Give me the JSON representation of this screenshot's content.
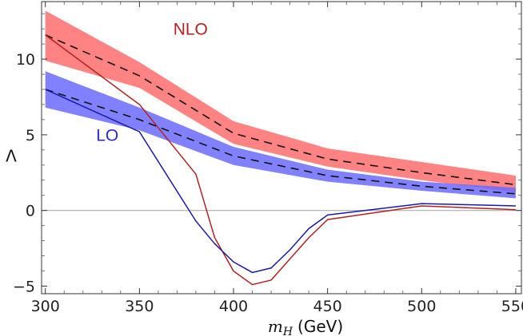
{
  "chart_data": {
    "type": "line",
    "title": "",
    "xlabel": "(GeV)",
    "xlabel_symbol": "m",
    "xlabel_subscript": "H",
    "ylabel": "Λ",
    "xlim": [
      298,
      553
    ],
    "ylim": [
      -5.5,
      13.8
    ],
    "xticks": [
      300,
      350,
      400,
      450,
      500,
      550
    ],
    "yticks": [
      -5,
      0,
      5,
      10
    ],
    "grid": false,
    "zero_line": true,
    "x": [
      300,
      350,
      400,
      450,
      500,
      550
    ],
    "bands": [
      {
        "name": "NLO band",
        "color": "#ff6d6d",
        "x": [
          300,
          350,
          400,
          450,
          500,
          550
        ],
        "lower": [
          9.9,
          8.1,
          4.4,
          2.9,
          2.0,
          1.2
        ],
        "upper": [
          13.2,
          9.8,
          5.9,
          4.1,
          3.2,
          2.3
        ],
        "central": [
          11.6,
          8.9,
          5.1,
          3.4,
          2.5,
          1.7
        ]
      },
      {
        "name": "LO band",
        "color": "#6b6bff",
        "x": [
          300,
          350,
          400,
          450,
          500,
          550
        ],
        "lower": [
          6.8,
          5.3,
          3.0,
          1.9,
          1.3,
          0.8
        ],
        "upper": [
          9.2,
          6.8,
          4.2,
          2.7,
          1.9,
          1.5
        ],
        "central": [
          8.0,
          6.0,
          3.6,
          2.3,
          1.6,
          1.1
        ]
      }
    ],
    "series": [
      {
        "name": "NLO",
        "color": "#b22222",
        "x": [
          300,
          350,
          380,
          390,
          400,
          410,
          420,
          430,
          440,
          450,
          500,
          550
        ],
        "values": [
          11.6,
          7.0,
          2.4,
          -1.8,
          -4.0,
          -4.9,
          -4.6,
          -3.2,
          -1.8,
          -0.6,
          0.3,
          0.05
        ]
      },
      {
        "name": "LO",
        "color": "#1a1aa8",
        "x": [
          300,
          350,
          380,
          390,
          400,
          410,
          420,
          430,
          440,
          450,
          500,
          550
        ],
        "values": [
          8.0,
          5.2,
          -0.7,
          -2.2,
          -3.4,
          -4.1,
          -3.8,
          -2.6,
          -1.2,
          -0.3,
          0.45,
          0.3
        ]
      }
    ],
    "annotations": [
      {
        "text": "NLO",
        "color": "#b22222",
        "x": 368,
        "y": 11.6
      },
      {
        "text": "LO",
        "color": "#2a2ae0",
        "x": 327,
        "y": 4.6
      }
    ]
  }
}
